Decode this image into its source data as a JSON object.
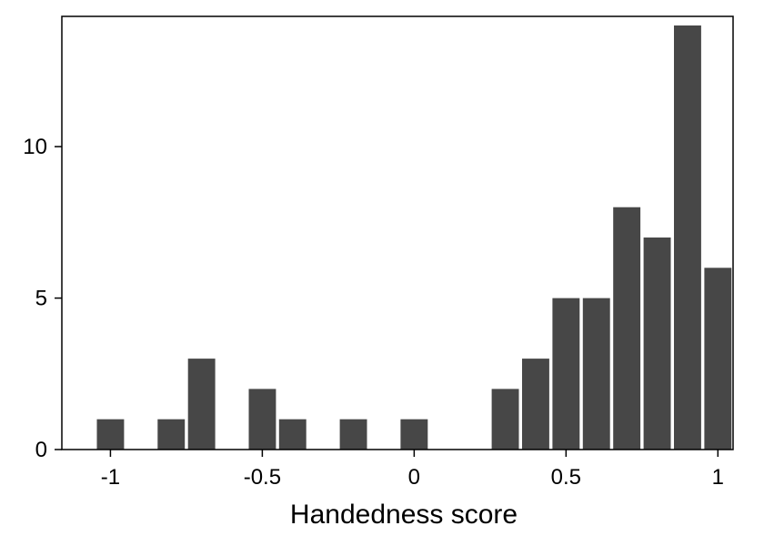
{
  "chart_data": {
    "type": "bar",
    "title": "",
    "xlabel": "Handedness score",
    "ylabel": "",
    "x": [
      -1.0,
      -0.8,
      -0.7,
      -0.5,
      -0.4,
      -0.2,
      0.0,
      0.3,
      0.4,
      0.5,
      0.6,
      0.7,
      0.8,
      0.9,
      1.0
    ],
    "values": [
      1,
      1,
      3,
      2,
      1,
      1,
      1,
      2,
      3,
      5,
      5,
      8,
      7,
      14,
      6
    ],
    "bin_width": 0.1,
    "xlim": [
      -1.16,
      1.05
    ],
    "ylim": [
      0,
      14.3
    ],
    "xticks": [
      -1,
      -0.5,
      0,
      0.5,
      1
    ],
    "xtick_labels": [
      "-1",
      "-0.5",
      "0",
      "0.5",
      "1"
    ],
    "yticks": [
      0,
      5,
      10
    ],
    "ytick_labels": [
      "0",
      "5",
      "10"
    ],
    "grid": false,
    "legend": "none",
    "colors": {
      "bar": "#474747",
      "axis": "#000000",
      "background": "#ffffff"
    }
  }
}
